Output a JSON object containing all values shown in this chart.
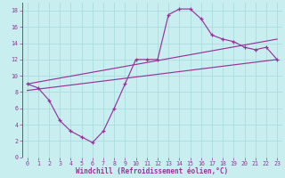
{
  "xlabel": "Windchill (Refroidissement éolien,°C)",
  "bg_color": "#c8eef0",
  "grid_color": "#aadddf",
  "line_color": "#993399",
  "xlim": [
    -0.5,
    23.5
  ],
  "ylim": [
    0,
    19
  ],
  "xticks": [
    0,
    1,
    2,
    3,
    4,
    5,
    6,
    7,
    8,
    9,
    10,
    11,
    12,
    13,
    14,
    15,
    16,
    17,
    18,
    19,
    20,
    21,
    22,
    23
  ],
  "yticks": [
    0,
    2,
    4,
    6,
    8,
    10,
    12,
    14,
    16,
    18
  ],
  "line_main_x": [
    0,
    1,
    2,
    3,
    4,
    5,
    6,
    7,
    8,
    9,
    10,
    11,
    12,
    13,
    14,
    15,
    16,
    17,
    18,
    19,
    20,
    21,
    22,
    23
  ],
  "line_main_y": [
    9.0,
    8.5,
    7.0,
    4.5,
    3.2,
    2.5,
    1.8,
    3.2,
    6.0,
    9.0,
    12.0,
    12.0,
    12.0,
    17.5,
    18.2,
    18.2,
    17.0,
    15.0,
    14.5,
    14.2,
    13.5,
    13.2,
    13.5,
    12.0
  ],
  "line2_x": [
    0,
    23
  ],
  "line2_y": [
    9.0,
    14.5
  ],
  "line3_x": [
    0,
    23
  ],
  "line3_y": [
    8.2,
    12.0
  ],
  "xlabel_fontsize": 5.5,
  "tick_fontsize": 4.8
}
